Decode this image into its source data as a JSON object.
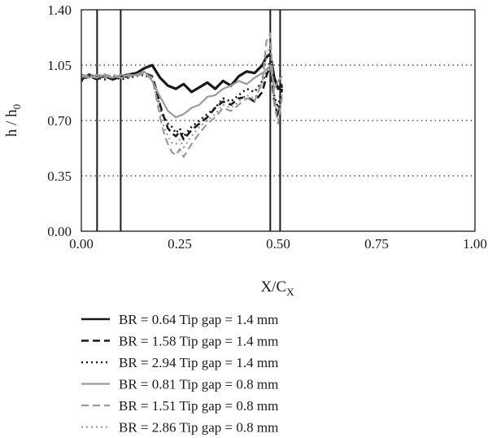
{
  "chart_data": {
    "type": "line",
    "xlabel": "X/C",
    "xlabel_sub": "X",
    "ylabel": "h / h",
    "ylabel_sub": "0",
    "xlim": [
      0,
      1
    ],
    "ylim": [
      0,
      1.4
    ],
    "x_ticks": [
      0,
      0.25,
      0.5,
      0.75,
      1.0
    ],
    "x_tick_labels": [
      "0.00",
      "0.25",
      "0.50",
      "0.75",
      "1.00"
    ],
    "y_ticks": [
      0,
      0.35,
      0.7,
      1.05,
      1.4
    ],
    "y_tick_labels": [
      "0.00",
      "0.35",
      "0.70",
      "1.05",
      "1.40"
    ],
    "grid": "dotted horizontal lines at 0.35, 0.70, 1.05",
    "vertical_reference_lines": [
      0.04,
      0.1,
      0.48,
      0.505
    ],
    "legend_position": "below chart",
    "series": [
      {
        "name": "BR = 0.64 Tip gap = 1.4 mm",
        "color": "#1a1a1a",
        "dash": "solid",
        "width": 3.2,
        "x": [
          0.0,
          0.02,
          0.04,
          0.06,
          0.08,
          0.1,
          0.12,
          0.14,
          0.16,
          0.18,
          0.2,
          0.22,
          0.24,
          0.26,
          0.28,
          0.3,
          0.32,
          0.34,
          0.36,
          0.38,
          0.4,
          0.42,
          0.44,
          0.46,
          0.47,
          0.48,
          0.49,
          0.5,
          0.51
        ],
        "y": [
          0.96,
          0.99,
          0.97,
          0.98,
          0.96,
          0.98,
          0.99,
          1.0,
          1.03,
          1.05,
          0.97,
          0.92,
          0.9,
          0.93,
          0.88,
          0.91,
          0.94,
          0.9,
          0.95,
          0.92,
          0.98,
          1.01,
          1.0,
          1.05,
          1.1,
          1.12,
          0.97,
          0.9,
          0.93
        ]
      },
      {
        "name": "BR = 1.58 Tip gap = 1.4 mm",
        "color": "#1a1a1a",
        "dash": "9,5",
        "width": 2.6,
        "x": [
          0.0,
          0.02,
          0.04,
          0.06,
          0.08,
          0.1,
          0.12,
          0.14,
          0.16,
          0.18,
          0.19,
          0.2,
          0.21,
          0.22,
          0.23,
          0.24,
          0.25,
          0.26,
          0.28,
          0.3,
          0.32,
          0.34,
          0.36,
          0.38,
          0.4,
          0.42,
          0.44,
          0.46,
          0.47,
          0.48,
          0.49,
          0.5,
          0.51
        ],
        "y": [
          0.97,
          0.98,
          0.96,
          0.99,
          0.97,
          0.97,
          0.98,
          0.99,
          1.0,
          0.98,
          0.9,
          0.8,
          0.72,
          0.65,
          0.62,
          0.6,
          0.63,
          0.58,
          0.64,
          0.68,
          0.72,
          0.78,
          0.82,
          0.8,
          0.84,
          0.85,
          0.82,
          0.88,
          0.98,
          1.05,
          0.82,
          0.72,
          0.9
        ]
      },
      {
        "name": "BR = 2.94 Tip gap = 1.4 mm",
        "color": "#1a1a1a",
        "dash": "2,4",
        "width": 2.6,
        "x": [
          0.0,
          0.02,
          0.04,
          0.06,
          0.08,
          0.1,
          0.12,
          0.14,
          0.16,
          0.18,
          0.19,
          0.2,
          0.21,
          0.22,
          0.23,
          0.24,
          0.25,
          0.26,
          0.28,
          0.3,
          0.32,
          0.34,
          0.36,
          0.38,
          0.4,
          0.42,
          0.44,
          0.46,
          0.47,
          0.48,
          0.49,
          0.5,
          0.51
        ],
        "y": [
          0.95,
          0.98,
          0.97,
          0.96,
          0.98,
          0.96,
          0.97,
          0.98,
          0.99,
          0.96,
          0.88,
          0.78,
          0.72,
          0.68,
          0.66,
          0.62,
          0.65,
          0.6,
          0.66,
          0.7,
          0.74,
          0.78,
          0.84,
          0.82,
          0.86,
          0.9,
          0.88,
          0.95,
          1.0,
          1.08,
          0.85,
          0.78,
          0.92
        ]
      },
      {
        "name": "BR = 0.81 Tip gap = 0.8 mm",
        "color": "#9a9a9a",
        "dash": "solid",
        "width": 2.2,
        "x": [
          0.0,
          0.02,
          0.04,
          0.06,
          0.08,
          0.1,
          0.12,
          0.14,
          0.16,
          0.18,
          0.2,
          0.22,
          0.24,
          0.26,
          0.28,
          0.3,
          0.32,
          0.34,
          0.36,
          0.38,
          0.4,
          0.42,
          0.44,
          0.46,
          0.47,
          0.48,
          0.49,
          0.5,
          0.51
        ],
        "y": [
          0.98,
          0.97,
          0.99,
          0.98,
          0.97,
          0.99,
          0.98,
          0.99,
          1.01,
          0.95,
          0.85,
          0.76,
          0.72,
          0.74,
          0.78,
          0.8,
          0.85,
          0.86,
          0.9,
          0.92,
          0.95,
          0.93,
          0.97,
          1.0,
          1.02,
          1.05,
          0.9,
          0.95,
          0.98
        ]
      },
      {
        "name": "BR = 1.51 Tip gap = 0.8 mm",
        "color": "#9a9a9a",
        "dash": "9,5",
        "width": 2.2,
        "x": [
          0.0,
          0.02,
          0.04,
          0.06,
          0.08,
          0.1,
          0.12,
          0.14,
          0.16,
          0.18,
          0.19,
          0.2,
          0.21,
          0.22,
          0.23,
          0.24,
          0.25,
          0.26,
          0.28,
          0.3,
          0.32,
          0.34,
          0.36,
          0.38,
          0.4,
          0.42,
          0.44,
          0.46,
          0.47,
          0.48,
          0.49,
          0.5,
          0.51
        ],
        "y": [
          0.99,
          0.98,
          0.97,
          0.99,
          0.98,
          0.97,
          0.99,
          0.98,
          1.0,
          0.97,
          0.85,
          0.72,
          0.62,
          0.55,
          0.5,
          0.48,
          0.52,
          0.47,
          0.55,
          0.62,
          0.68,
          0.72,
          0.78,
          0.76,
          0.8,
          0.84,
          0.82,
          0.95,
          1.2,
          1.25,
          0.8,
          0.68,
          0.85
        ]
      },
      {
        "name": "BR = 2.86 Tip gap = 0.8 mm",
        "color": "#9a9a9a",
        "dash": "2,4",
        "width": 2.2,
        "x": [
          0.0,
          0.02,
          0.04,
          0.06,
          0.08,
          0.1,
          0.12,
          0.14,
          0.16,
          0.18,
          0.19,
          0.2,
          0.21,
          0.22,
          0.23,
          0.24,
          0.25,
          0.26,
          0.28,
          0.3,
          0.32,
          0.34,
          0.36,
          0.38,
          0.4,
          0.42,
          0.44,
          0.46,
          0.47,
          0.48,
          0.49,
          0.5,
          0.51
        ],
        "y": [
          0.97,
          0.99,
          0.98,
          0.97,
          0.99,
          0.98,
          0.97,
          0.99,
          1.0,
          0.96,
          0.86,
          0.75,
          0.66,
          0.6,
          0.56,
          0.55,
          0.58,
          0.53,
          0.6,
          0.66,
          0.7,
          0.74,
          0.8,
          0.78,
          0.82,
          0.86,
          0.84,
          0.93,
          1.1,
          1.18,
          0.85,
          0.7,
          0.88
        ]
      }
    ]
  }
}
